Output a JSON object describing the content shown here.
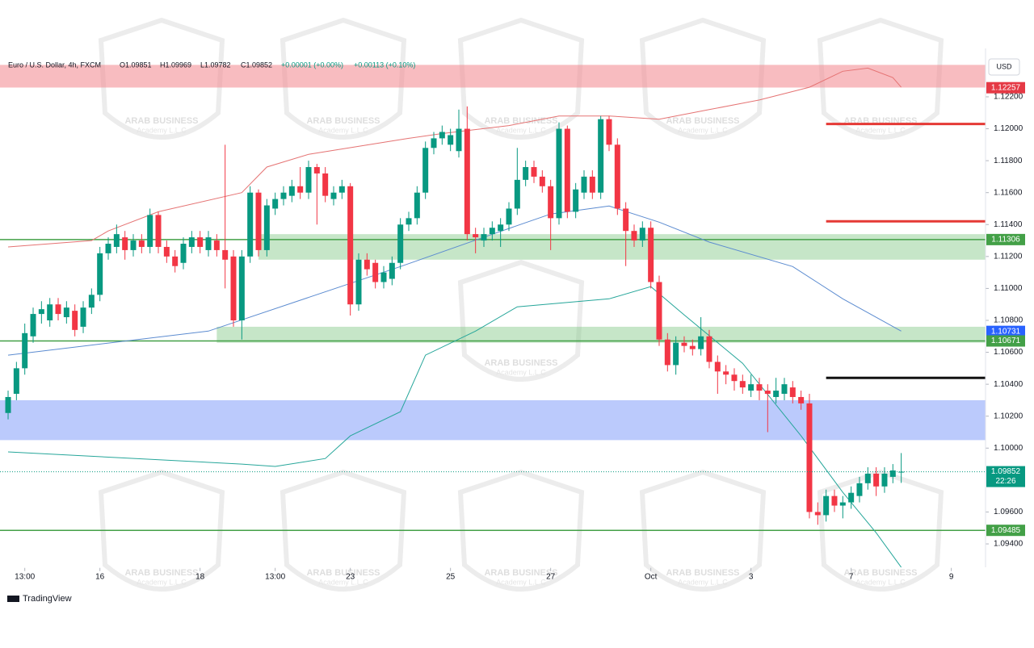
{
  "chart_data": {
    "type": "candlestick",
    "title": "Euro / U.S. Dollar, 4h, FXCM",
    "readout": [
      "O1.09851",
      "H1.09969",
      "L1.09782",
      "C1.09852",
      "+0.00001 (+0.00%)",
      "+0.00113 (+0.10%)"
    ],
    "currency": "USD",
    "brand": "TradingView",
    "watermark": [
      "ARAB BUSINESS",
      "Academy L.L.C"
    ],
    "up_color": "#089981",
    "down_color": "#f23645",
    "xlim": [
      -0.97,
      117.1
    ],
    "xticks": [
      {
        "value": 2,
        "label": "13:00"
      },
      {
        "value": 11,
        "label": "16"
      },
      {
        "value": 23,
        "label": "18"
      },
      {
        "value": 32,
        "label": "13:00"
      },
      {
        "value": 41,
        "label": "23"
      },
      {
        "value": 53,
        "label": "25"
      },
      {
        "value": 65,
        "label": "27"
      },
      {
        "value": 77,
        "label": "Oct"
      },
      {
        "value": 89,
        "label": "3"
      },
      {
        "value": 101,
        "label": "7"
      },
      {
        "value": 113,
        "label": "9"
      }
    ],
    "ylim": [
      1.0925,
      1.1245
    ],
    "yticks": [
      {
        "value": 1.094,
        "label": "1.09400"
      },
      {
        "value": 1.096,
        "label": "1.09600"
      },
      {
        "value": 1.1,
        "label": "1.10000"
      },
      {
        "value": 1.102,
        "label": "1.10200"
      },
      {
        "value": 1.104,
        "label": "1.10400"
      },
      {
        "value": 1.106,
        "label": "1.10600"
      },
      {
        "value": 1.108,
        "label": "1.10800"
      },
      {
        "value": 1.11,
        "label": "1.11000"
      },
      {
        "value": 1.112,
        "label": "1.11200"
      },
      {
        "value": 1.114,
        "label": "1.11400"
      },
      {
        "value": 1.116,
        "label": "1.11600"
      },
      {
        "value": 1.118,
        "label": "1.11800"
      },
      {
        "value": 1.12,
        "label": "1.12000"
      },
      {
        "value": 1.122,
        "label": "1.12200"
      }
    ],
    "open": [
      1.1022,
      1.1034,
      1.105,
      1.107,
      1.1084,
      1.108,
      1.109,
      1.1082,
      1.1086,
      1.1076,
      1.1088,
      1.1096,
      1.1122,
      1.1126,
      1.1132,
      1.1124,
      1.113,
      1.1126,
      1.1146,
      1.1126,
      1.112,
      1.1116,
      1.1126,
      1.1132,
      1.1124,
      1.113,
      1.1124,
      1.112,
      1.108,
      1.112,
      1.116,
      1.1124,
      1.115,
      1.1156,
      1.1158,
      1.1164,
      1.116,
      1.1176,
      1.1172,
      1.1156,
      1.116,
      1.1164,
      1.109,
      1.1118,
      1.1116,
      1.1104,
      1.1106,
      1.1116,
      1.114,
      1.1144,
      1.116,
      1.1188,
      1.1194,
      1.119,
      1.1186,
      1.12,
      1.1134,
      1.113,
      1.1134,
      1.1136,
      1.114,
      1.115,
      1.1168,
      1.1176,
      1.117,
      1.1164,
      1.1144,
      1.12,
      1.1148,
      1.116,
      1.117,
      1.116,
      1.1206,
      1.119,
      1.115,
      1.1136,
      1.113,
      1.1138,
      1.1104,
      1.1068,
      1.1052,
      1.1066,
      1.1064,
      1.1062,
      1.107,
      1.1054,
      1.1048,
      1.1046,
      1.1042,
      1.1036,
      1.104,
      1.1036,
      1.1032,
      1.1034,
      1.1038,
      1.1032,
      1.1028,
      1.096,
      1.0958,
      1.097,
      1.0964,
      1.0966,
      1.097,
      1.0978,
      1.0984,
      1.0976,
      1.0982,
      1.09851
    ],
    "high": [
      1.1036,
      1.1054,
      1.1078,
      1.1088,
      1.1092,
      1.1094,
      1.1094,
      1.1092,
      1.109,
      1.1092,
      1.11,
      1.1126,
      1.1132,
      1.114,
      1.1136,
      1.1134,
      1.1134,
      1.115,
      1.1148,
      1.113,
      1.1124,
      1.1132,
      1.1136,
      1.1136,
      1.1136,
      1.1134,
      1.119,
      1.1124,
      1.1124,
      1.1164,
      1.1162,
      1.1156,
      1.116,
      1.1164,
      1.1168,
      1.1176,
      1.118,
      1.1178,
      1.1176,
      1.1164,
      1.1168,
      1.1166,
      1.1122,
      1.1122,
      1.1118,
      1.1114,
      1.112,
      1.1144,
      1.1148,
      1.1164,
      1.1192,
      1.1198,
      1.1202,
      1.12,
      1.1212,
      1.1214,
      1.1138,
      1.1138,
      1.1142,
      1.1144,
      1.1154,
      1.1188,
      1.118,
      1.118,
      1.1174,
      1.1168,
      1.1204,
      1.1202,
      1.1166,
      1.1174,
      1.1174,
      1.1208,
      1.1208,
      1.1194,
      1.1154,
      1.114,
      1.1142,
      1.1142,
      1.1108,
      1.1072,
      1.107,
      1.107,
      1.1068,
      1.1082,
      1.1074,
      1.1058,
      1.1052,
      1.105,
      1.1046,
      1.1046,
      1.1044,
      1.104,
      1.1044,
      1.1044,
      1.1042,
      1.1036,
      1.1034,
      1.0966,
      1.0974,
      1.0974,
      1.097,
      1.0976,
      1.0982,
      1.0988,
      1.0988,
      1.0988,
      1.099,
      1.09969
    ],
    "low": [
      1.1018,
      1.103,
      1.1046,
      1.1066,
      1.1078,
      1.1076,
      1.108,
      1.1078,
      1.107,
      1.1072,
      1.1084,
      1.1092,
      1.1118,
      1.1122,
      1.1118,
      1.112,
      1.1122,
      1.1122,
      1.1122,
      1.1116,
      1.111,
      1.1112,
      1.1122,
      1.1122,
      1.112,
      1.112,
      1.11,
      1.1076,
      1.1068,
      1.1116,
      1.112,
      1.112,
      1.1146,
      1.1152,
      1.1154,
      1.1156,
      1.1156,
      1.114,
      1.1154,
      1.1152,
      1.1156,
      1.1083,
      1.1086,
      1.1108,
      1.11,
      1.11,
      1.1102,
      1.1112,
      1.1136,
      1.114,
      1.1156,
      1.1184,
      1.119,
      1.1186,
      1.1182,
      1.113,
      1.1122,
      1.1126,
      1.113,
      1.1126,
      1.1136,
      1.1146,
      1.1164,
      1.1166,
      1.116,
      1.1124,
      1.114,
      1.1144,
      1.1144,
      1.1156,
      1.1156,
      1.1156,
      1.1186,
      1.1146,
      1.1114,
      1.1126,
      1.1126,
      1.11,
      1.1064,
      1.1048,
      1.1046,
      1.106,
      1.1058,
      1.1058,
      1.105,
      1.1034,
      1.104,
      1.1036,
      1.1034,
      1.1032,
      1.103,
      1.101,
      1.1028,
      1.103,
      1.1028,
      1.1024,
      1.0956,
      1.0952,
      1.0954,
      1.096,
      1.0956,
      1.0962,
      1.0966,
      1.0974,
      1.097,
      1.0972,
      1.0978,
      1.09782
    ],
    "close": [
      1.1032,
      1.105,
      1.1072,
      1.1084,
      1.1087,
      1.109,
      1.1084,
      1.1088,
      1.1074,
      1.1088,
      1.1096,
      1.1122,
      1.1128,
      1.1134,
      1.1124,
      1.113,
      1.1126,
      1.1146,
      1.1126,
      1.112,
      1.1114,
      1.1128,
      1.1132,
      1.1126,
      1.1132,
      1.1124,
      1.1118,
      1.108,
      1.112,
      1.116,
      1.1124,
      1.1152,
      1.1156,
      1.116,
      1.1164,
      1.116,
      1.1176,
      1.1172,
      1.1158,
      1.116,
      1.1164,
      1.109,
      1.1118,
      1.1112,
      1.1104,
      1.111,
      1.1116,
      1.114,
      1.1144,
      1.116,
      1.1188,
      1.1194,
      1.1198,
      1.1196,
      1.12,
      1.1134,
      1.1132,
      1.1134,
      1.1138,
      1.114,
      1.115,
      1.1168,
      1.1176,
      1.117,
      1.1164,
      1.1144,
      1.12,
      1.1148,
      1.1162,
      1.117,
      1.116,
      1.1206,
      1.119,
      1.115,
      1.1136,
      1.113,
      1.1138,
      1.1104,
      1.1068,
      1.1052,
      1.1066,
      1.1064,
      1.1062,
      1.107,
      1.1054,
      1.1048,
      1.1046,
      1.1042,
      1.1038,
      1.104,
      1.1036,
      1.1034,
      1.1036,
      1.104,
      1.1032,
      1.1028,
      1.096,
      1.0958,
      1.097,
      1.0964,
      1.0966,
      1.0972,
      1.0978,
      1.0984,
      1.0976,
      1.0984,
      1.0986,
      1.09852
    ],
    "bands": [
      {
        "color": "#e57373",
        "x": [
          0,
          10,
          12,
          18,
          28,
          31,
          36,
          48,
          52,
          60,
          66,
          72,
          78,
          84,
          90,
          96,
          100,
          103,
          106,
          107
        ],
        "values": [
          1.1126,
          1.113,
          1.1136,
          1.1148,
          1.116,
          1.1176,
          1.1184,
          1.1194,
          1.1197,
          1.1202,
          1.1208,
          1.1208,
          1.1206,
          1.1212,
          1.1218,
          1.1226,
          1.1236,
          1.1238,
          1.1232,
          1.1226
        ]
      },
      {
        "color": "#5b8bd0",
        "x": [
          0,
          24,
          47,
          58,
          65,
          72,
          78,
          84,
          94,
          100,
          107
        ],
        "values": [
          1.10582,
          1.10733,
          1.11137,
          1.11339,
          1.11466,
          1.11516,
          1.11415,
          1.1129,
          1.11137,
          1.10935,
          1.10733
        ]
      },
      {
        "color": "#26a69a",
        "x": [
          0,
          28,
          32,
          38,
          41,
          47,
          50,
          56,
          61,
          72,
          77,
          81,
          88,
          95,
          100,
          104,
          107
        ],
        "values": [
          1.09976,
          1.099,
          1.09885,
          1.09935,
          1.10077,
          1.10228,
          1.10582,
          1.10733,
          1.10885,
          1.10935,
          1.11011,
          1.10834,
          1.10531,
          1.10077,
          1.09723,
          1.0947,
          1.09254
        ]
      }
    ],
    "zones": [
      {
        "from": 1.12258,
        "to": 1.124,
        "x_from": -0.97,
        "color": "rgba(244,143,150,0.6)"
      },
      {
        "from": 1.1118,
        "to": 1.1134,
        "x_from": 30,
        "color": "rgba(129,199,132,0.45)"
      },
      {
        "from": 1.1066,
        "to": 1.1076,
        "x_from": 25,
        "color": "rgba(129,199,132,0.45)"
      },
      {
        "from": 1.1005,
        "to": 1.103,
        "x_from": -0.97,
        "color": "rgba(120,150,250,0.5)"
      }
    ],
    "levels": [
      {
        "value": 1.11306,
        "x_from": -0.97,
        "color": "#43a047"
      },
      {
        "value": 1.10671,
        "x_from": -0.97,
        "color": "#43a047"
      },
      {
        "value": 1.09485,
        "x_from": -0.97,
        "color": "#43a047"
      },
      {
        "value": 1.1203,
        "x_from": 98,
        "color": "#e53935"
      },
      {
        "value": 1.1142,
        "x_from": 98,
        "color": "#e53935"
      },
      {
        "value": 1.1044,
        "x_from": 98,
        "color": "#111111"
      }
    ],
    "tags": [
      {
        "value": 1.12257,
        "color": "#e53945"
      },
      {
        "value": 1.11306,
        "color": "#43a047"
      },
      {
        "value": 1.10731,
        "color": "#2962ff"
      },
      {
        "value": 1.10671,
        "color": "#43a047"
      },
      {
        "value": 1.09852,
        "color": "#089981",
        "note": "22:26"
      },
      {
        "value": 1.09485,
        "color": "#43a047"
      }
    ]
  }
}
